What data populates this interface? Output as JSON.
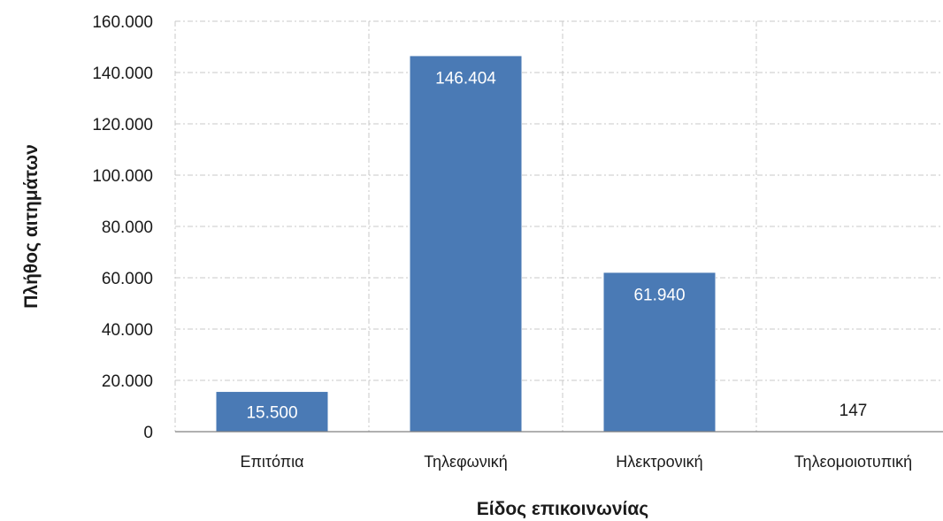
{
  "chart_data": {
    "type": "bar",
    "categories": [
      "Επιτόπια",
      "Τηλεφωνική",
      "Ηλεκτρονική",
      "Τηλεομοιοτυπική"
    ],
    "values": [
      15500,
      146404,
      61940,
      147
    ],
    "data_labels": [
      "15.500",
      "146.404",
      "61.940",
      "147"
    ],
    "title": "",
    "xlabel": "Είδος επικοινωνίας",
    "ylabel": "Πλήθος αιτημάτων",
    "ylim": [
      0,
      160000
    ],
    "yticks": [
      0,
      20000,
      40000,
      60000,
      80000,
      100000,
      120000,
      140000,
      160000
    ],
    "ytick_labels": [
      "0",
      "20.000",
      "40.000",
      "60.000",
      "80.000",
      "100.000",
      "120.000",
      "140.000",
      "160.000"
    ],
    "grid": true,
    "legend": "none",
    "colors": {
      "bar": "#4a7ab5",
      "label_inside": "#ffffff",
      "label_outside": "#1a1a1a"
    }
  }
}
